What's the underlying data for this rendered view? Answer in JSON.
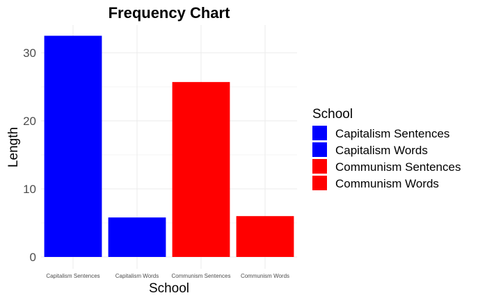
{
  "chart_data": {
    "type": "bar",
    "title": "Frequency Chart",
    "xlabel": "School",
    "ylabel": "Length",
    "categories": [
      "Capitalism Sentences",
      "Capitalism Words",
      "Communism Sentences",
      "Communism Words"
    ],
    "values": [
      32.5,
      5.8,
      25.7,
      6.0
    ],
    "colors": [
      "#0000ff",
      "#0000ff",
      "#ff0000",
      "#ff0000"
    ],
    "yticks": [
      "0",
      "10",
      "20",
      "30"
    ],
    "ylim": [
      0,
      34.5
    ],
    "grid": true,
    "legend": {
      "title": "School",
      "placement": "right",
      "entries": [
        {
          "label": "Capitalism Sentences",
          "color": "#0000ff"
        },
        {
          "label": "Capitalism Words",
          "color": "#0000ff"
        },
        {
          "label": "Communism Sentences",
          "color": "#ff0000"
        },
        {
          "label": "Communism Words",
          "color": "#ff0000"
        }
      ]
    }
  }
}
